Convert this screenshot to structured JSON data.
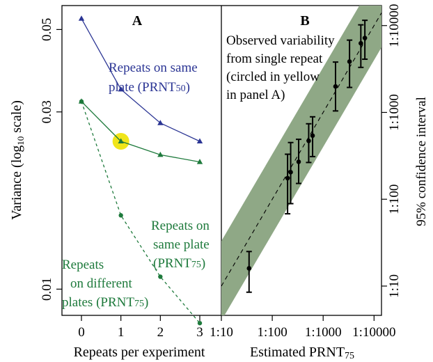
{
  "colors": {
    "blue": "#2b3594",
    "green": "#1e7a3c",
    "band": "#8fa886",
    "highlight": "#f0e51a",
    "black": "#000000"
  },
  "chart_data": [
    {
      "panel": "A",
      "type": "line",
      "y_scale": "log10",
      "xlabel": "Repeats per experiment",
      "ylabel_main": "Variance (log",
      "ylabel_sub": "10",
      "ylabel_rest": " scale)",
      "x_ticks": [
        "0",
        "1",
        "2",
        "3"
      ],
      "y_ticks": [
        "0.05",
        "0.03",
        "0.01"
      ],
      "x": [
        0,
        1,
        2,
        3
      ],
      "ylim": [
        0.0085,
        0.058
      ],
      "series": [
        {
          "id": "prnt50_same",
          "label_lines": [
            "Repeats on same",
            "plate (PRNT"
          ],
          "label_sub": "50",
          "label_end": ")",
          "marker": "triangle",
          "style": "solid",
          "color": "blue",
          "values": [
            0.0535,
            0.0345,
            0.028,
            0.025
          ]
        },
        {
          "id": "prnt75_same",
          "label_lines": [
            "Repeats on",
            "same plate",
            "(PRNT"
          ],
          "label_sub": "75",
          "label_end": ")",
          "marker": "triangle",
          "style": "solid",
          "color": "green",
          "values": [
            0.032,
            0.025,
            0.023,
            0.022
          ]
        },
        {
          "id": "prnt75_diff",
          "label_lines": [
            "Repeats",
            "on different",
            "plates (PRNT"
          ],
          "label_sub": "75",
          "label_end": ")",
          "marker": "circle",
          "style": "dashed",
          "color": "green",
          "values": [
            0.032,
            0.0158,
            0.0108,
            0.0081
          ]
        }
      ],
      "highlight": {
        "x": 1,
        "y": 0.025
      }
    },
    {
      "panel": "B",
      "type": "scatter",
      "x_scale": "log10",
      "y_scale": "log10",
      "xlabel_main": "Estimated PRNT",
      "xlabel_sub": "75",
      "ylabel": "95% confidence interval",
      "x_ticks": [
        "1:10",
        "1:100",
        "1:1000",
        "1:10000"
      ],
      "y_ticks": [
        "1:10",
        "1:100",
        "1:1000",
        "1:10000"
      ],
      "xlim": [
        10,
        14000
      ],
      "ylim": [
        4.6,
        17000
      ],
      "annotation_lines": [
        "Observed variability",
        "from single repeat",
        "(circled in yellow",
        "in panel A)"
      ],
      "band": {
        "lower_factor": 0.4,
        "upper_factor": 3.3
      },
      "points": [
        {
          "x": 35,
          "y": 16,
          "lo": 8.5,
          "hi": 25
        },
        {
          "x": 200,
          "y": 175,
          "lo": 68,
          "hi": 330
        },
        {
          "x": 230,
          "y": 205,
          "lo": 89,
          "hi": 450
        },
        {
          "x": 330,
          "y": 270,
          "lo": 152,
          "hi": 490
        },
        {
          "x": 520,
          "y": 470,
          "lo": 265,
          "hi": 740
        },
        {
          "x": 620,
          "y": 540,
          "lo": 310,
          "hi": 890
        },
        {
          "x": 1750,
          "y": 1990,
          "lo": 1040,
          "hi": 3800
        },
        {
          "x": 3300,
          "y": 3850,
          "lo": 1940,
          "hi": 6800
        },
        {
          "x": 5500,
          "y": 6250,
          "lo": 3300,
          "hi": 10200
        },
        {
          "x": 6600,
          "y": 7200,
          "lo": 4100,
          "hi": 11500
        }
      ]
    }
  ]
}
